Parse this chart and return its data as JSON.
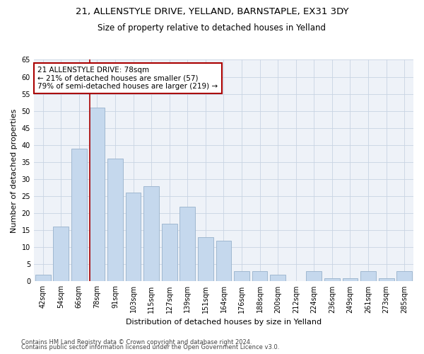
{
  "title1": "21, ALLENSTYLE DRIVE, YELLAND, BARNSTAPLE, EX31 3DY",
  "title2": "Size of property relative to detached houses in Yelland",
  "xlabel": "Distribution of detached houses by size in Yelland",
  "ylabel": "Number of detached properties",
  "footer1": "Contains HM Land Registry data © Crown copyright and database right 2024.",
  "footer2": "Contains public sector information licensed under the Open Government Licence v3.0.",
  "categories": [
    "42sqm",
    "54sqm",
    "66sqm",
    "78sqm",
    "91sqm",
    "103sqm",
    "115sqm",
    "127sqm",
    "139sqm",
    "151sqm",
    "164sqm",
    "176sqm",
    "188sqm",
    "200sqm",
    "212sqm",
    "224sqm",
    "236sqm",
    "249sqm",
    "261sqm",
    "273sqm",
    "285sqm"
  ],
  "values": [
    2,
    16,
    39,
    51,
    36,
    26,
    28,
    17,
    22,
    13,
    12,
    3,
    3,
    2,
    0,
    3,
    1,
    1,
    3,
    1,
    3
  ],
  "bar_color": "#c5d8ed",
  "bar_edgecolor": "#a0b8d0",
  "vline_index": 3,
  "vline_color": "#aa0000",
  "annotation_line1": "21 ALLENSTYLE DRIVE: 78sqm",
  "annotation_line2": "← 21% of detached houses are smaller (57)",
  "annotation_line3": "79% of semi-detached houses are larger (219) →",
  "annotation_box_color": "#ffffff",
  "annotation_box_edgecolor": "#aa0000",
  "ylim": [
    0,
    65
  ],
  "yticks": [
    0,
    5,
    10,
    15,
    20,
    25,
    30,
    35,
    40,
    45,
    50,
    55,
    60,
    65
  ],
  "grid_color": "#c8d4e3",
  "bg_color": "#eef2f8",
  "title1_fontsize": 9.5,
  "title2_fontsize": 8.5,
  "xlabel_fontsize": 8,
  "ylabel_fontsize": 8,
  "tick_fontsize": 7,
  "footer_fontsize": 6,
  "annotation_fontsize": 7.5
}
